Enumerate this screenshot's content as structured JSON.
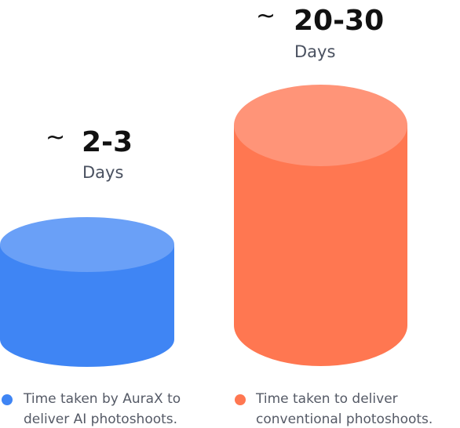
{
  "items": [
    {
      "approx": "~",
      "value": "2-3",
      "unit": "Days",
      "legend": [
        "Time taken by AuraX to",
        "deliver AI photoshoots."
      ]
    },
    {
      "approx": "~",
      "value": "20-30",
      "unit": "Days",
      "legend": [
        "Time taken to deliver",
        "conventional photoshoots."
      ]
    }
  ]
}
